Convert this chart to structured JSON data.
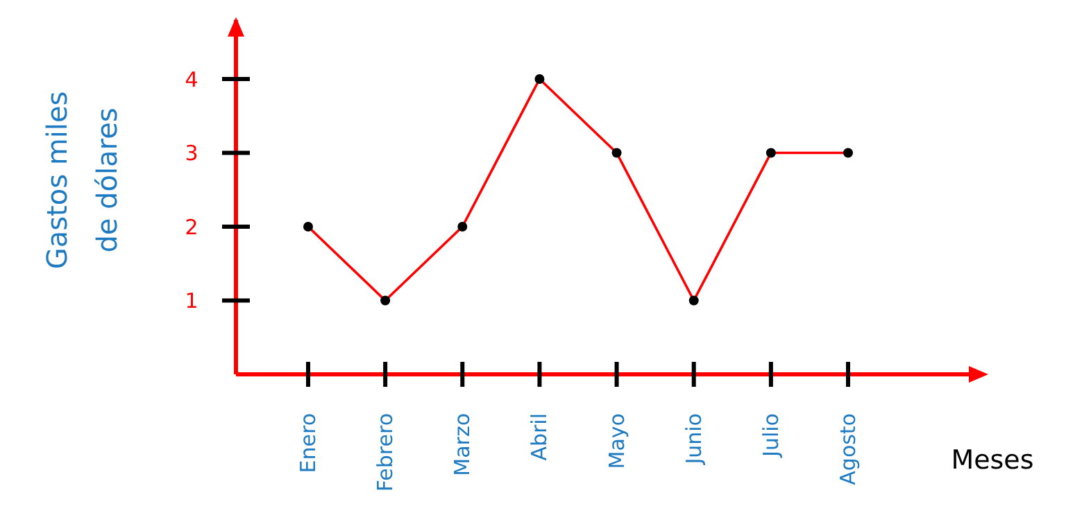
{
  "chart_data": {
    "type": "line",
    "xlabel": "Meses",
    "ylabel": "Gastos miles de dólares",
    "categories": [
      "Enero",
      "Febrero",
      "Marzo",
      "Abril",
      "Mayo",
      "Junio",
      "Julio",
      "Agosto"
    ],
    "series": [
      {
        "color": "#ff0000",
        "values": [
          2,
          1,
          2,
          4,
          3,
          1,
          3,
          3
        ]
      }
    ],
    "ylim": [
      0,
      4.8
    ],
    "yticks": [
      1,
      2,
      3,
      4
    ],
    "grid": false,
    "marker": "circle",
    "line_style": "solid"
  }
}
